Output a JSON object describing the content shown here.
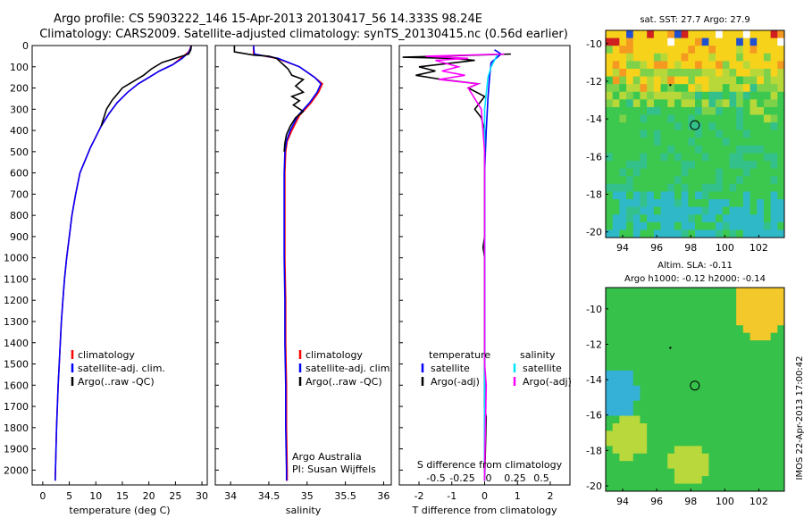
{
  "header": {
    "line1": "Argo profile: CS 5903222_146 15-Apr-2013 20130417_56 14.333S 98.24E",
    "line2": "Climatology: CARS2009. Satellite-adjusted climatology: synTS_20130415.nc (0.56d earlier)"
  },
  "chart_data": [
    {
      "type": "line",
      "id": "temperature",
      "xlabel": "temperature (deg C)",
      "ylabel": "",
      "xlim": [
        -2,
        31
      ],
      "ylim": [
        2070,
        0
      ],
      "xticks": [
        0,
        5,
        10,
        15,
        20,
        25,
        30
      ],
      "xticklabels": [
        "0",
        "5",
        "10",
        "15",
        "20",
        "25",
        "30"
      ],
      "yticks": [
        0,
        100,
        200,
        300,
        400,
        500,
        600,
        700,
        800,
        900,
        1000,
        1100,
        1200,
        1300,
        1400,
        1500,
        1600,
        1700,
        1800,
        1900,
        2000
      ],
      "yticklabels": [
        "0",
        "100",
        "200",
        "300",
        "400",
        "500",
        "600",
        "700",
        "800",
        "900",
        "1000",
        "1100",
        "1200",
        "1300",
        "1400",
        "1500",
        "1600",
        "1700",
        "1800",
        "1900",
        "2000"
      ],
      "legend": [
        {
          "label": "climatology",
          "color": "#ff0000"
        },
        {
          "label": "satellite-adj. clim.",
          "color": "#0000ff"
        },
        {
          "label": "Argo(..raw -QC)",
          "color": "#000000"
        }
      ],
      "series": [
        {
          "name": "climatology",
          "color": "#ff0000",
          "points": [
            [
              28,
              0
            ],
            [
              27.5,
              30
            ],
            [
              26,
              60
            ],
            [
              24.5,
              90
            ],
            [
              22,
              120
            ],
            [
              20,
              150
            ],
            [
              18,
              180
            ],
            [
              16,
              220
            ],
            [
              14,
              270
            ],
            [
              12.5,
              320
            ],
            [
              11,
              380
            ],
            [
              10,
              430
            ],
            [
              9,
              480
            ],
            [
              8,
              540
            ],
            [
              7,
              600
            ],
            [
              6.2,
              700
            ],
            [
              5.5,
              800
            ],
            [
              5,
              900
            ],
            [
              4.5,
              1000
            ],
            [
              4.1,
              1100
            ],
            [
              3.8,
              1200
            ],
            [
              3.5,
              1300
            ],
            [
              3.3,
              1400
            ],
            [
              3.1,
              1500
            ],
            [
              2.9,
              1600
            ],
            [
              2.75,
              1700
            ],
            [
              2.6,
              1800
            ],
            [
              2.5,
              1900
            ],
            [
              2.4,
              2000
            ],
            [
              2.35,
              2050
            ]
          ]
        },
        {
          "name": "satellite-adj. clim.",
          "color": "#0000ff",
          "points": [
            [
              28,
              0
            ],
            [
              27.6,
              30
            ],
            [
              26.3,
              60
            ],
            [
              24.5,
              90
            ],
            [
              22,
              120
            ],
            [
              20,
              150
            ],
            [
              18,
              180
            ],
            [
              16,
              220
            ],
            [
              14,
              270
            ],
            [
              12.5,
              320
            ],
            [
              11,
              380
            ],
            [
              10,
              430
            ],
            [
              9,
              480
            ],
            [
              8,
              540
            ],
            [
              7,
              600
            ],
            [
              6.2,
              700
            ],
            [
              5.5,
              800
            ],
            [
              5,
              900
            ],
            [
              4.5,
              1000
            ],
            [
              4.1,
              1100
            ],
            [
              3.8,
              1200
            ],
            [
              3.5,
              1300
            ],
            [
              3.3,
              1400
            ],
            [
              3.1,
              1500
            ],
            [
              2.9,
              1600
            ],
            [
              2.75,
              1700
            ],
            [
              2.6,
              1800
            ],
            [
              2.5,
              1900
            ],
            [
              2.4,
              2000
            ],
            [
              2.35,
              2050
            ]
          ]
        },
        {
          "name": "Argo(..raw -QC)",
          "color": "#000000",
          "points": [
            [
              28,
              0
            ],
            [
              27.9,
              20
            ],
            [
              27.5,
              40
            ],
            [
              25,
              60
            ],
            [
              22.5,
              80
            ],
            [
              20.5,
              110
            ],
            [
              19,
              140
            ],
            [
              17,
              170
            ],
            [
              15,
              200
            ],
            [
              14,
              230
            ],
            [
              13,
              260
            ],
            [
              12,
              300
            ],
            [
              11,
              380
            ]
          ]
        }
      ]
    },
    {
      "type": "line",
      "id": "salinity",
      "xlabel": "salinity",
      "ylabel": "",
      "xlim": [
        33.8,
        36.1
      ],
      "ylim": [
        2070,
        0
      ],
      "xticks": [
        34,
        34.5,
        35,
        35.5,
        36
      ],
      "xticklabels": [
        "34",
        "34.5",
        "35",
        "35.5",
        "36"
      ],
      "legend": [
        {
          "label": "climatology",
          "color": "#ff0000"
        },
        {
          "label": "satellite-adj. clim.",
          "color": "#0000ff"
        },
        {
          "label": "Argo(..raw -QC)",
          "color": "#000000"
        }
      ],
      "annotations": [
        "Argo Australia",
        "PI: Susan Wijffels"
      ],
      "series": [
        {
          "name": "climatology",
          "color": "#ff0000",
          "points": [
            [
              34.3,
              0
            ],
            [
              34.3,
              40
            ],
            [
              34.6,
              60
            ],
            [
              34.9,
              100
            ],
            [
              35.1,
              150
            ],
            [
              35.2,
              180
            ],
            [
              35.15,
              220
            ],
            [
              35.05,
              270
            ],
            [
              34.9,
              330
            ],
            [
              34.8,
              400
            ],
            [
              34.74,
              450
            ],
            [
              34.72,
              500
            ],
            [
              34.71,
              600
            ],
            [
              34.71,
              800
            ],
            [
              34.71,
              1000
            ],
            [
              34.72,
              1200
            ],
            [
              34.72,
              1400
            ],
            [
              34.73,
              1600
            ],
            [
              34.73,
              1800
            ],
            [
              34.74,
              2000
            ],
            [
              34.74,
              2050
            ]
          ]
        },
        {
          "name": "satellite-adj. clim.",
          "color": "#0000ff",
          "points": [
            [
              34.3,
              0
            ],
            [
              34.31,
              40
            ],
            [
              34.62,
              60
            ],
            [
              34.9,
              100
            ],
            [
              35.1,
              150
            ],
            [
              35.18,
              180
            ],
            [
              35.13,
              220
            ],
            [
              35.03,
              270
            ],
            [
              34.88,
              330
            ],
            [
              34.78,
              400
            ],
            [
              34.73,
              450
            ],
            [
              34.71,
              500
            ],
            [
              34.7,
              600
            ],
            [
              34.7,
              800
            ],
            [
              34.7,
              1000
            ],
            [
              34.71,
              1200
            ],
            [
              34.71,
              1400
            ],
            [
              34.72,
              1600
            ],
            [
              34.72,
              1800
            ],
            [
              34.73,
              2000
            ],
            [
              34.73,
              2050
            ]
          ]
        },
        {
          "name": "Argo(..raw -QC)",
          "color": "#000000",
          "points": [
            [
              34.05,
              0
            ],
            [
              34.05,
              30
            ],
            [
              34.3,
              45
            ],
            [
              34.5,
              50
            ],
            [
              34.6,
              60
            ],
            [
              34.75,
              110
            ],
            [
              34.8,
              140
            ],
            [
              34.95,
              160
            ],
            [
              34.85,
              190
            ],
            [
              34.95,
              220
            ],
            [
              34.8,
              240
            ],
            [
              34.9,
              260
            ],
            [
              34.82,
              280
            ],
            [
              34.95,
              310
            ],
            [
              34.85,
              340
            ],
            [
              34.78,
              380
            ],
            [
              34.73,
              420
            ],
            [
              34.71,
              460
            ],
            [
              34.7,
              500
            ]
          ]
        }
      ]
    },
    {
      "type": "line",
      "id": "difference",
      "xlabel": "T difference from climatology",
      "xlabel_top": "S difference from climatology",
      "ylabel": "",
      "xlim": [
        -2.6,
        2.6
      ],
      "ylim": [
        2070,
        0
      ],
      "xticks": [
        -2,
        -1,
        0,
        1,
        2
      ],
      "xticklabels": [
        "-2",
        "-1",
        "0",
        "1",
        "2"
      ],
      "sticks": [
        -0.5,
        -0.25,
        0,
        0.25,
        0.5
      ],
      "sticklabels": [
        "-0.5",
        "-0.25",
        "0",
        "0.25",
        "0.5"
      ],
      "legend_headers": [
        "temperature",
        "salinity"
      ],
      "legend": [
        {
          "label": "satellite",
          "color": "#0000ff"
        },
        {
          "label": "Argo(-adj)",
          "color": "#000000"
        },
        {
          "label": "satellite",
          "color": "#00e5ff"
        },
        {
          "label": "Argo(-adj)",
          "color": "#ff00ff"
        }
      ],
      "series": [
        {
          "name": "T satellite",
          "color": "#0000ff",
          "points": [
            [
              0.3,
              20
            ],
            [
              0.5,
              40
            ],
            [
              0.2,
              80
            ],
            [
              0.15,
              150
            ],
            [
              0.1,
              250
            ],
            [
              0.05,
              400
            ],
            [
              0,
              600
            ],
            [
              0,
              2050
            ]
          ]
        },
        {
          "name": "T Argo(-adj)",
          "color": "#000000",
          "points": [
            [
              0.8,
              40
            ],
            [
              -2.5,
              55
            ],
            [
              -1,
              60
            ],
            [
              -0.3,
              70
            ],
            [
              -2,
              100
            ],
            [
              -1.5,
              120
            ],
            [
              -2.1,
              140
            ],
            [
              -1.3,
              160
            ],
            [
              -0.2,
              180
            ],
            [
              -0.5,
              200
            ],
            [
              0,
              240
            ],
            [
              -0.3,
              300
            ],
            [
              -0.1,
              340
            ],
            [
              0,
              400
            ],
            [
              0,
              900
            ],
            [
              -0.05,
              950
            ],
            [
              0,
              1000
            ],
            [
              0,
              1700
            ],
            [
              0.05,
              1750
            ],
            [
              0,
              2050
            ]
          ]
        },
        {
          "name": "S satellite",
          "color": "#00e5ff",
          "points": [
            [
              0.4,
              40
            ],
            [
              0.2,
              100
            ],
            [
              0.1,
              150
            ],
            [
              0,
              300
            ],
            [
              0,
              2050
            ]
          ]
        },
        {
          "name": "S Argo(-adj)",
          "color": "#ff00ff",
          "points": [
            [
              0.6,
              40
            ],
            [
              -1.8,
              50
            ],
            [
              -0.5,
              60
            ],
            [
              -1.5,
              70
            ],
            [
              -0.8,
              100
            ],
            [
              -1.3,
              120
            ],
            [
              -0.6,
              140
            ],
            [
              -1.4,
              160
            ],
            [
              -0.2,
              180
            ],
            [
              -0.5,
              200
            ],
            [
              -0.1,
              300
            ],
            [
              0,
              500
            ],
            [
              0,
              1000
            ],
            [
              0,
              1500
            ],
            [
              0.05,
              1600
            ],
            [
              0,
              2000
            ],
            [
              0,
              2050
            ]
          ]
        }
      ]
    },
    {
      "type": "heatmap",
      "id": "sst-map",
      "title": "sat. SST: 27.7  Argo: 27.9",
      "xlim": [
        93,
        103.5
      ],
      "ylim": [
        -20.3,
        -9.3
      ],
      "xticks": [
        94,
        96,
        98,
        100,
        102
      ],
      "xticklabels": [
        "94",
        "96",
        "98",
        "100",
        "102"
      ],
      "yticks": [
        -10,
        -12,
        -14,
        -16,
        -18,
        -20
      ],
      "yticklabels": [
        "-10",
        "-12",
        "-14",
        "-16",
        "-18",
        "-20"
      ],
      "argo_position": [
        98.24,
        -14.333
      ],
      "colors": {
        "warm": "#f4d41a",
        "mid": "#3cc84e",
        "cool": "#2aa8d8"
      }
    },
    {
      "type": "heatmap",
      "id": "sla-map",
      "title": "Altim. SLA: -0.11",
      "subtitle": "Argo h1000: -0.12  h2000: -0.14",
      "xlim": [
        93,
        103.5
      ],
      "ylim": [
        -20.3,
        -8.8
      ],
      "xticks": [
        94,
        96,
        98,
        100,
        102
      ],
      "xticklabels": [
        "94",
        "96",
        "98",
        "100",
        "102"
      ],
      "yticks": [
        -10,
        -12,
        -14,
        -16,
        -18,
        -20
      ],
      "yticklabels": [
        "-10",
        "-12",
        "-14",
        "-16",
        "-18",
        "-20"
      ],
      "argo_position": [
        98.24,
        -14.333
      ],
      "colors": {
        "warm": "#f2d227",
        "mid": "#36c24a",
        "cool": "#35b0d6"
      }
    }
  ],
  "footer": {
    "watermark": "IMOS 22-Apr-2013 17:00:42"
  }
}
